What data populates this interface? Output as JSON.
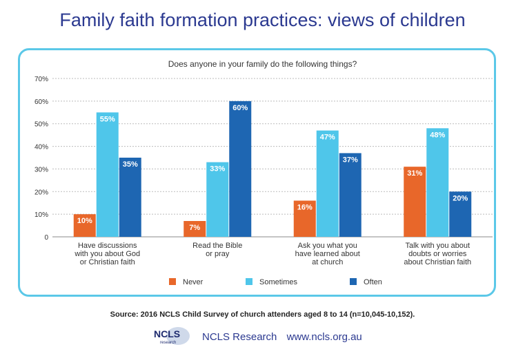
{
  "title": "Family faith formation practices: views of children",
  "question": "Does anyone in your family do the following things?",
  "source": "Source: 2016 NCLS Child Survey of church attenders aged 8 to 14 (n=10,045-10,152).",
  "footer": {
    "org": "NCLS Research",
    "url": "www.ncls.org.au",
    "logo_text": "NCLS",
    "logo_sub": "research"
  },
  "colors": {
    "title": "#2b3990",
    "border": "#5bc8e8",
    "never": "#e8672a",
    "sometimes": "#4fc6ea",
    "often": "#1e66b2"
  },
  "chart_data": {
    "type": "bar",
    "categories": [
      [
        "Have discussions",
        "with you about God",
        "or Christian faith"
      ],
      [
        "Read the Bible",
        "or pray"
      ],
      [
        "Ask you what you",
        "have learned about",
        "at church"
      ],
      [
        "Talk with you about",
        "doubts or worries",
        "about Christian faith"
      ]
    ],
    "series": [
      {
        "name": "Never",
        "values": [
          10,
          7,
          16,
          31
        ],
        "labels": [
          "10%",
          "7%",
          "16%",
          "31%"
        ]
      },
      {
        "name": "Sometimes",
        "values": [
          55,
          33,
          47,
          48
        ],
        "labels": [
          "55%",
          "33%",
          "47%",
          "48%"
        ]
      },
      {
        "name": "Often",
        "values": [
          35,
          60,
          37,
          20
        ],
        "labels": [
          "35%",
          "60%",
          "37%",
          "20%"
        ]
      }
    ],
    "y_ticks": [
      "0",
      "10%",
      "20%",
      "30%",
      "40%",
      "50%",
      "60%",
      "70%"
    ],
    "ylim": [
      0,
      70
    ],
    "grid": true,
    "legend": "bottom"
  }
}
